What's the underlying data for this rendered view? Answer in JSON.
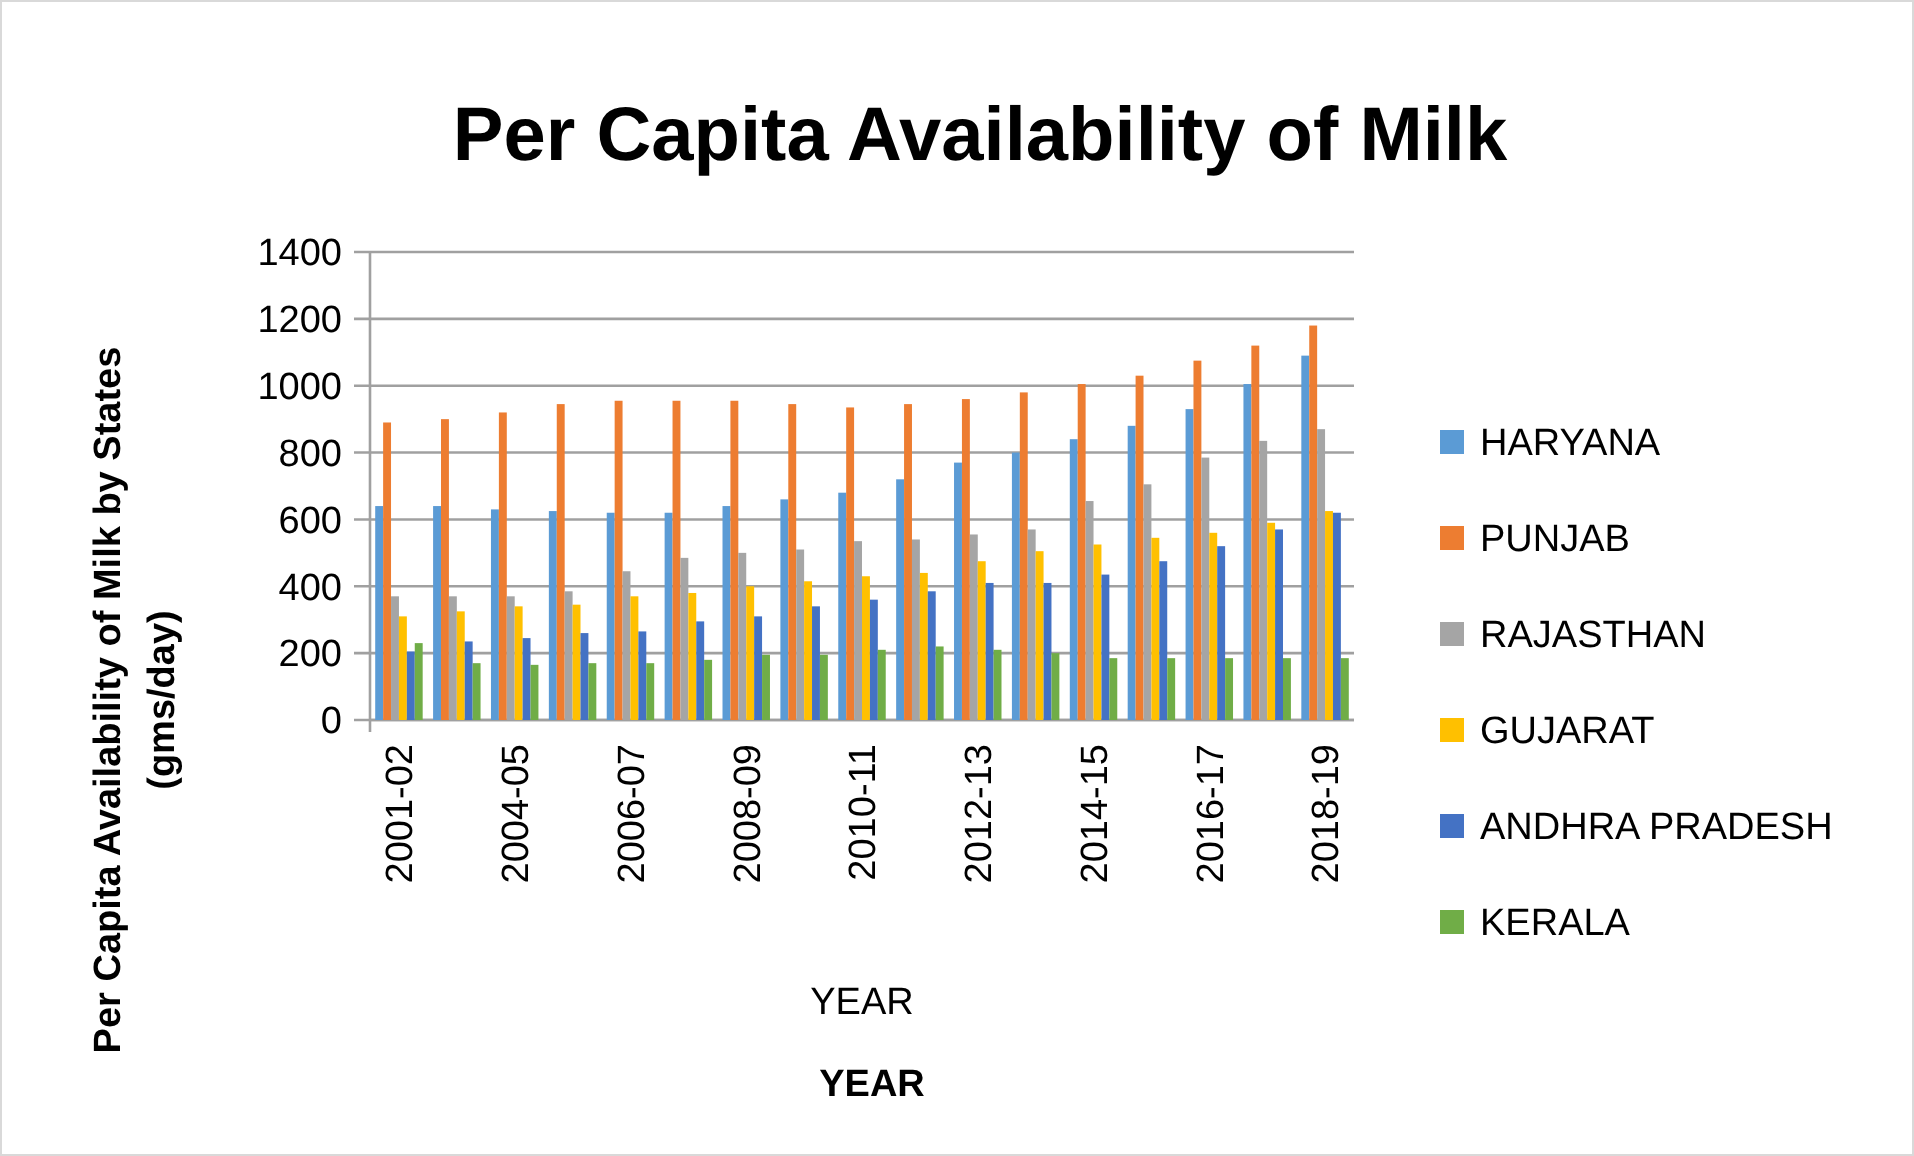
{
  "chart_data": {
    "type": "bar",
    "title": "Per Capita Availability of Milk",
    "xlabel": "YEAR",
    "ylabel": "Per Capita Availability of Milk by States (gms/day)",
    "annotations": [
      "YEAR"
    ],
    "categories": [
      "2001-02",
      null,
      "2004-05",
      null,
      "2006-07",
      null,
      "2008-09",
      null,
      "2010-11",
      null,
      "2012-13",
      null,
      "2014-15",
      null,
      "2016-17",
      null,
      "2018-19"
    ],
    "series": [
      {
        "name": "HARYANA",
        "color": "#5b9bd5",
        "values": [
          640,
          640,
          630,
          625,
          620,
          620,
          640,
          660,
          680,
          720,
          770,
          800,
          840,
          880,
          930,
          1005,
          1090
        ]
      },
      {
        "name": "PUNJAB",
        "color": "#ed7d31",
        "values": [
          890,
          900,
          920,
          945,
          955,
          955,
          955,
          945,
          935,
          945,
          960,
          980,
          1005,
          1030,
          1075,
          1120,
          1180
        ]
      },
      {
        "name": "RAJASTHAN",
        "color": "#a5a5a5",
        "values": [
          370,
          370,
          370,
          385,
          445,
          485,
          500,
          510,
          535,
          540,
          555,
          570,
          655,
          705,
          785,
          835,
          870
        ]
      },
      {
        "name": "GUJARAT",
        "color": "#ffc000",
        "values": [
          310,
          325,
          340,
          345,
          370,
          380,
          400,
          415,
          430,
          440,
          475,
          505,
          525,
          545,
          560,
          590,
          625
        ]
      },
      {
        "name": "ANDHRA PRADESH",
        "color": "#4472c4",
        "values": [
          205,
          235,
          245,
          260,
          265,
          295,
          310,
          340,
          360,
          385,
          410,
          410,
          435,
          475,
          520,
          570,
          620
        ]
      },
      {
        "name": "KERALA",
        "color": "#70ad47",
        "values": [
          230,
          170,
          165,
          170,
          170,
          180,
          195,
          195,
          210,
          220,
          210,
          200,
          185,
          185,
          185,
          185,
          185
        ]
      }
    ],
    "ylim": [
      0,
      1400
    ],
    "yticks": [
      0,
      200,
      400,
      600,
      800,
      1000,
      1200,
      1400
    ],
    "grid": "y",
    "legend": "right"
  }
}
